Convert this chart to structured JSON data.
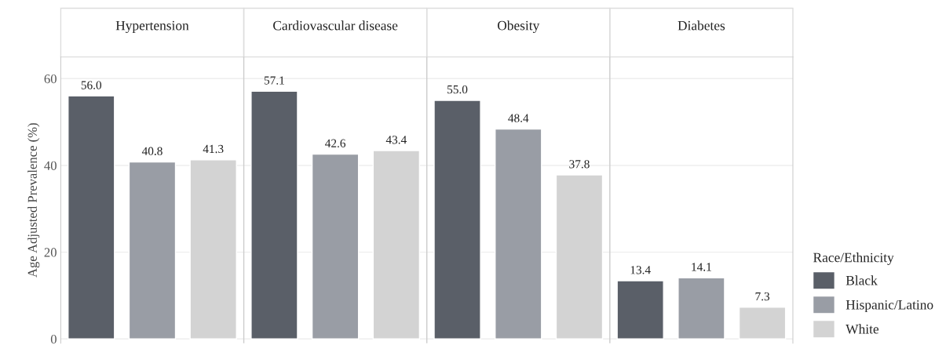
{
  "chart_data": {
    "type": "bar",
    "ylabel": "Age Adjusted Prevalence (%)",
    "categories": [
      "Hypertension",
      "Cardiovascular disease",
      "Obesity",
      "Diabetes"
    ],
    "series": [
      {
        "name": "Black",
        "color": "#5a5f68",
        "values": [
          56.0,
          57.1,
          55.0,
          13.4
        ],
        "value_labels": [
          "56.0",
          "57.1",
          "55.0",
          "13.4"
        ]
      },
      {
        "name": "Hispanic/Latino",
        "color": "#999da5",
        "values": [
          40.8,
          42.6,
          48.4,
          14.1
        ],
        "value_labels": [
          "40.8",
          "42.6",
          "48.4",
          "14.1"
        ]
      },
      {
        "name": "White",
        "color": "#d3d3d3",
        "values": [
          41.3,
          43.4,
          37.8,
          7.3
        ],
        "value_labels": [
          "41.3",
          "43.4",
          "37.8",
          "7.3"
        ]
      }
    ],
    "ylim": [
      -1,
      65
    ],
    "yticks": [
      0,
      20,
      40,
      60
    ],
    "grid": "y",
    "legend": "right",
    "legend_title": "Race/Ethnicity"
  }
}
